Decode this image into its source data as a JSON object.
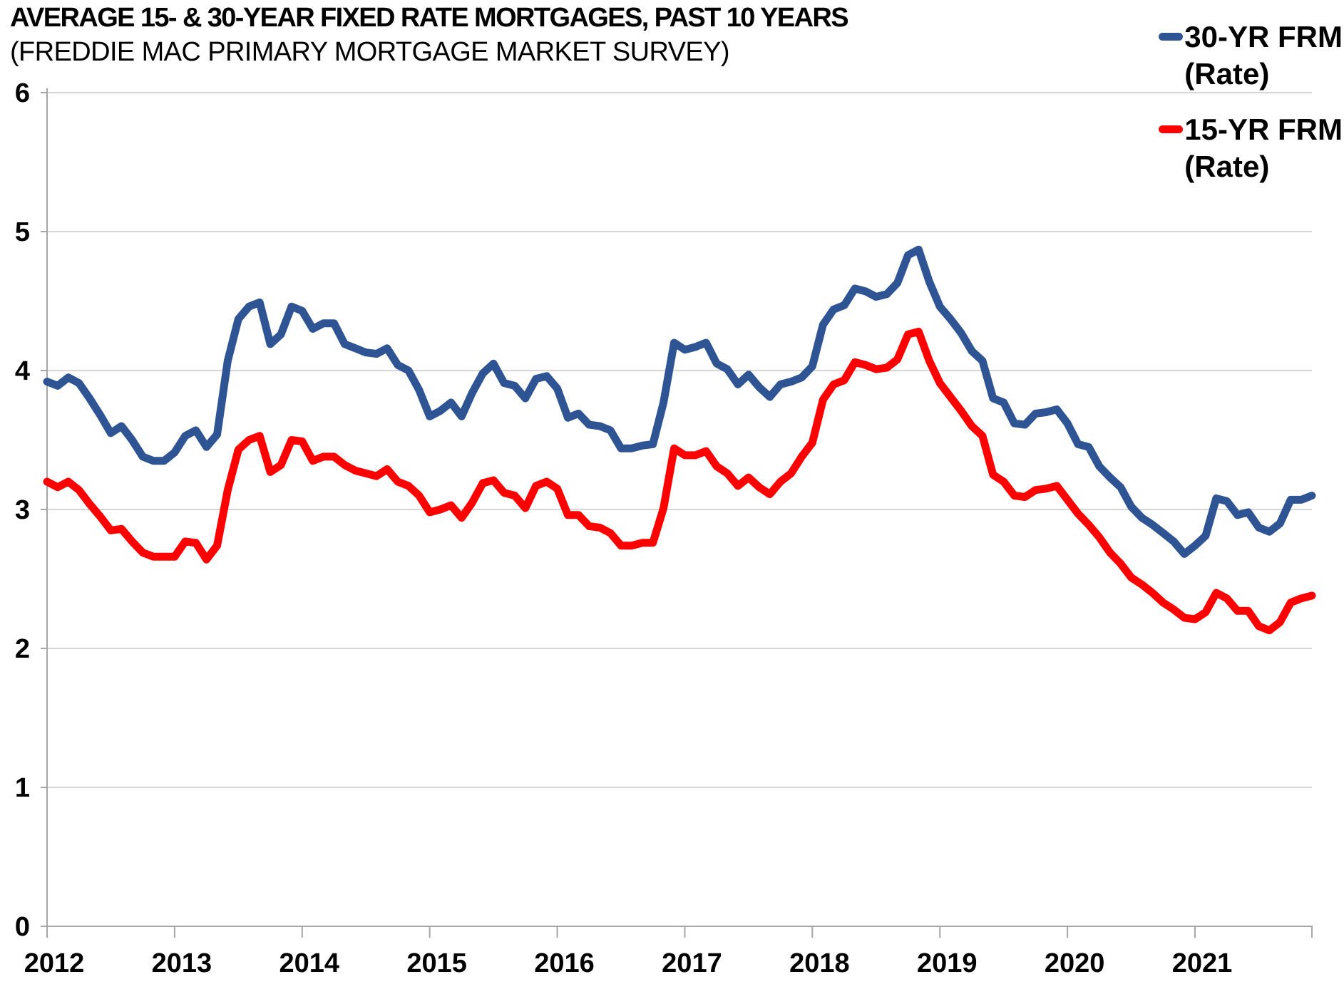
{
  "chart_data": {
    "type": "line",
    "title": "AVERAGE 15- & 30-YEAR FIXED RATE MORTGAGES, PAST 10 YEARS",
    "subtitle": "(FREDDIE MAC PRIMARY MORTGAGE MARKET SURVEY)",
    "x_unit": "month",
    "x_range": [
      "2012-01",
      "2021-12"
    ],
    "x_tick_labels": [
      "2012",
      "2013",
      "2014",
      "2015",
      "2016",
      "2017",
      "2018",
      "2019",
      "2020",
      "2021"
    ],
    "ylim": [
      0,
      6
    ],
    "y_ticks": [
      0,
      1,
      2,
      3,
      4,
      5,
      6
    ],
    "grid": "horizontal",
    "legend_position": "top-right",
    "markers": "none",
    "colors": {
      "axis": "#A6A6A6",
      "gridline": "#C9C9C9"
    },
    "series": [
      {
        "name": "30-YR FRM (Rate)",
        "key": "30yr",
        "color": "#2F5494",
        "values": [
          3.92,
          3.89,
          3.95,
          3.91,
          3.8,
          3.68,
          3.55,
          3.6,
          3.5,
          3.38,
          3.35,
          3.35,
          3.41,
          3.53,
          3.57,
          3.45,
          3.54,
          4.07,
          4.37,
          4.46,
          4.49,
          4.19,
          4.26,
          4.46,
          4.43,
          4.3,
          4.34,
          4.34,
          4.19,
          4.16,
          4.13,
          4.12,
          4.16,
          4.04,
          4.0,
          3.86,
          3.67,
          3.71,
          3.77,
          3.67,
          3.84,
          3.98,
          4.05,
          3.91,
          3.89,
          3.8,
          3.94,
          3.96,
          3.87,
          3.66,
          3.69,
          3.61,
          3.6,
          3.57,
          3.44,
          3.44,
          3.46,
          3.47,
          3.77,
          4.2,
          4.15,
          4.17,
          4.2,
          4.05,
          4.01,
          3.9,
          3.97,
          3.88,
          3.81,
          3.9,
          3.92,
          3.95,
          4.03,
          4.33,
          4.44,
          4.47,
          4.59,
          4.57,
          4.53,
          4.55,
          4.63,
          4.83,
          4.87,
          4.64,
          4.46,
          4.37,
          4.27,
          4.14,
          4.07,
          3.8,
          3.77,
          3.62,
          3.61,
          3.69,
          3.7,
          3.72,
          3.62,
          3.47,
          3.45,
          3.31,
          3.23,
          3.16,
          3.02,
          2.94,
          2.89,
          2.83,
          2.77,
          2.68,
          2.74,
          2.81,
          3.08,
          3.06,
          2.96,
          2.98,
          2.87,
          2.84,
          2.9,
          3.07,
          3.07,
          3.1
        ]
      },
      {
        "name": "15-YR FRM (Rate)",
        "key": "15yr",
        "color": "#FF0000",
        "values": [
          3.2,
          3.16,
          3.2,
          3.14,
          3.04,
          2.95,
          2.85,
          2.86,
          2.77,
          2.69,
          2.66,
          2.66,
          2.66,
          2.77,
          2.76,
          2.64,
          2.74,
          3.14,
          3.43,
          3.5,
          3.53,
          3.27,
          3.32,
          3.5,
          3.49,
          3.35,
          3.38,
          3.38,
          3.32,
          3.28,
          3.26,
          3.24,
          3.29,
          3.2,
          3.17,
          3.1,
          2.98,
          3.0,
          3.03,
          2.94,
          3.05,
          3.19,
          3.21,
          3.12,
          3.1,
          3.01,
          3.17,
          3.2,
          3.15,
          2.96,
          2.96,
          2.88,
          2.87,
          2.83,
          2.74,
          2.74,
          2.76,
          2.76,
          3.01,
          3.44,
          3.39,
          3.39,
          3.42,
          3.31,
          3.26,
          3.17,
          3.23,
          3.16,
          3.11,
          3.2,
          3.26,
          3.38,
          3.48,
          3.79,
          3.9,
          3.93,
          4.06,
          4.04,
          4.01,
          4.02,
          4.08,
          4.26,
          4.28,
          4.07,
          3.91,
          3.81,
          3.71,
          3.6,
          3.53,
          3.25,
          3.2,
          3.1,
          3.09,
          3.14,
          3.15,
          3.17,
          3.07,
          2.97,
          2.89,
          2.8,
          2.69,
          2.61,
          2.51,
          2.46,
          2.4,
          2.33,
          2.28,
          2.22,
          2.21,
          2.26,
          2.4,
          2.36,
          2.27,
          2.27,
          2.16,
          2.13,
          2.19,
          2.33,
          2.36,
          2.38
        ]
      }
    ]
  },
  "legend": {
    "items": [
      {
        "line1": "30-YR FRM",
        "line2": "(Rate)"
      },
      {
        "line1": "15-YR FRM",
        "line2": "(Rate)"
      }
    ]
  }
}
